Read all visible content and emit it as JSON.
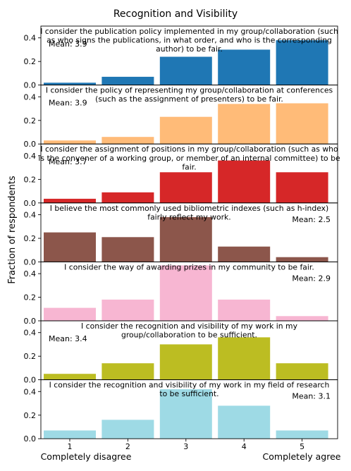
{
  "figure": {
    "title": "Recognition and Visibility",
    "ylabel": "Fraction of respondents",
    "x_left_label": "Completely disagree",
    "x_right_label": "Completely agree"
  },
  "chart_data": [
    {
      "type": "bar",
      "title_lines": [
        "I consider the publication policy implemented in my group/collaboration (such",
        "as who signs the publications, in what order, and who is the corresponding",
        "author) to be fair."
      ],
      "mean_label": "Mean: 3.9",
      "mean_position": "top-left",
      "categories": [
        "1",
        "2",
        "3",
        "4",
        "5"
      ],
      "values": [
        0.02,
        0.07,
        0.24,
        0.3,
        0.38
      ],
      "color": "#1f77b4",
      "ylim": [
        0,
        0.5
      ],
      "yticks": [
        "0.0",
        "0.2",
        "0.4"
      ]
    },
    {
      "type": "bar",
      "title_lines": [
        "I consider the policy of representing my group/collaboration at conferences",
        "(such as the assignment of presenters) to be fair."
      ],
      "mean_label": "Mean: 3.9",
      "mean_position": "top-left",
      "categories": [
        "1",
        "2",
        "3",
        "4",
        "5"
      ],
      "values": [
        0.03,
        0.06,
        0.23,
        0.34,
        0.345
      ],
      "color": "#ffbb78",
      "ylim": [
        0,
        0.5
      ],
      "yticks": [
        "0.0",
        "0.2",
        "0.4"
      ]
    },
    {
      "type": "bar",
      "title_lines": [
        "I consider the assignment of positions in my group/collaboration (such as who",
        "is the convener of a working group, or member of an internal committee) to be",
        "fair."
      ],
      "mean_label": "Mean: 3.7",
      "mean_position": "top-left",
      "categories": [
        "1",
        "2",
        "3",
        "4",
        "5"
      ],
      "values": [
        0.035,
        0.09,
        0.26,
        0.36,
        0.26
      ],
      "color": "#d62728",
      "ylim": [
        0,
        0.5
      ],
      "yticks": [
        "0.0",
        "0.2",
        "0.4"
      ]
    },
    {
      "type": "bar",
      "title_lines": [
        "I believe the most commonly used bibliometric indexes (such as h-index)",
        "fairly reflect my work."
      ],
      "mean_label": "Mean: 2.5",
      "mean_position": "top-right",
      "categories": [
        "1",
        "2",
        "3",
        "4",
        "5"
      ],
      "values": [
        0.25,
        0.21,
        0.38,
        0.13,
        0.04
      ],
      "color": "#8c564b",
      "ylim": [
        0,
        0.5
      ],
      "yticks": [
        "0.0",
        "0.2",
        "0.4"
      ]
    },
    {
      "type": "bar",
      "title_lines": [
        "I consider the way of awarding prizes in my community to be fair."
      ],
      "mean_label": "Mean: 2.9",
      "mean_position": "top-right",
      "categories": [
        "1",
        "2",
        "3",
        "4",
        "5"
      ],
      "values": [
        0.11,
        0.18,
        0.47,
        0.18,
        0.04
      ],
      "color": "#f7b6d2",
      "ylim": [
        0,
        0.5
      ],
      "yticks": [
        "0.0",
        "0.2",
        "0.4"
      ]
    },
    {
      "type": "bar",
      "title_lines": [
        "I consider the recognition and visibility of my work in my",
        "group/collaboration to be sufficient."
      ],
      "mean_label": "Mean: 3.4",
      "mean_position": "top-left",
      "categories": [
        "1",
        "2",
        "3",
        "4",
        "5"
      ],
      "values": [
        0.05,
        0.14,
        0.3,
        0.36,
        0.14
      ],
      "color": "#bcbd22",
      "ylim": [
        0,
        0.5
      ],
      "yticks": [
        "0.0",
        "0.2",
        "0.4"
      ]
    },
    {
      "type": "bar",
      "title_lines": [
        "I consider the recognition and visibility of my work in my field of research",
        "to be sufficient."
      ],
      "mean_label": "Mean: 3.1",
      "mean_position": "top-right",
      "categories": [
        "1",
        "2",
        "3",
        "4",
        "5"
      ],
      "values": [
        0.07,
        0.16,
        0.42,
        0.28,
        0.07
      ],
      "color": "#9edae5",
      "ylim": [
        0,
        0.5
      ],
      "yticks": [
        "0.0",
        "0.2",
        "0.4"
      ]
    }
  ]
}
